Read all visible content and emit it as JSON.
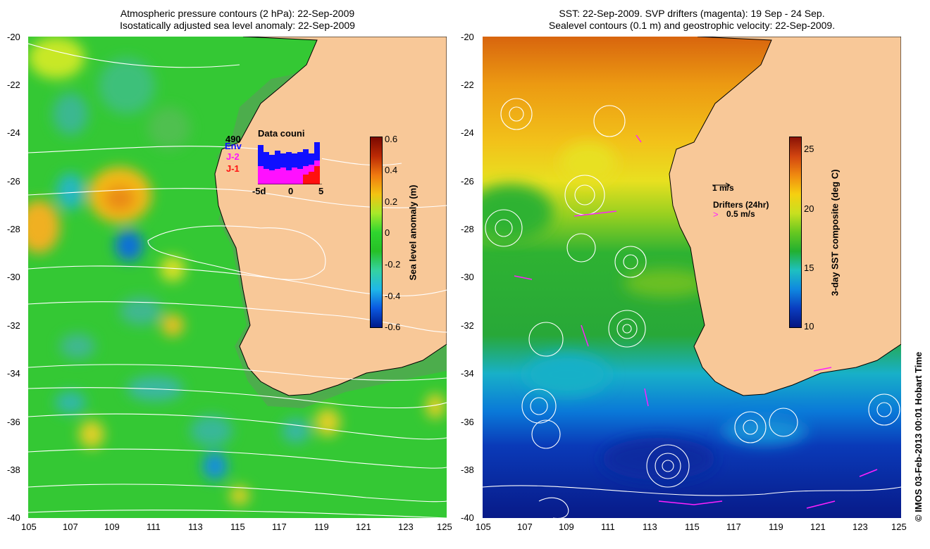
{
  "left_panel": {
    "title_line1": "Atmospheric pressure contours (2 hPa): 22-Sep-2009",
    "title_line2": "Isostatically adjusted sea level anomaly: 22-Sep-2009",
    "colorbar_label": "Sea level anomaly (m)",
    "colorbar_ticks": [
      "0.6",
      "0.4",
      "0.2",
      "0",
      "-0.2",
      "-0.4",
      "-0.6"
    ],
    "inset": {
      "count": "490",
      "title": "Data couni",
      "series": [
        {
          "label": "Env",
          "color": "#1010ff"
        },
        {
          "label": "J-2",
          "color": "#ff10ff"
        },
        {
          "label": "J-1",
          "color": "#ff1010"
        }
      ],
      "x_ticks": [
        "-5d",
        "0",
        "5"
      ]
    }
  },
  "right_panel": {
    "title_line1": "SST: 22-Sep-2009. SVP drifters (magenta): 19 Sep - 24 Sep.",
    "title_line2": "Sealevel contours (0.1 m) and geostrophic velocity: 22-Sep-2009.",
    "colorbar_label": "3-day SST composite (deg C)",
    "colorbar_ticks": [
      "25",
      "20",
      "15",
      "10"
    ],
    "velocity_scale_label": "1 m/s",
    "drifters_label": "Drifters (24hr)",
    "drifter_scale_label": "0.5 m/s"
  },
  "axes": {
    "lat_ticks": [
      "-20",
      "-22",
      "-24",
      "-26",
      "-28",
      "-30",
      "-32",
      "-34",
      "-36",
      "-38",
      "-40"
    ],
    "lon_ticks": [
      "105",
      "107",
      "109",
      "111",
      "113",
      "115",
      "117",
      "119",
      "121",
      "123",
      "125"
    ]
  },
  "colors": {
    "land": "#f8c898",
    "ocean_left": "#30c830",
    "ocean_right_warm": "#e88a10",
    "ocean_right_cold": "#0a1a90",
    "drifter": "#ff20ff"
  },
  "credit": "© IMOS 03-Feb-2013 00:01 Hobart Time"
}
